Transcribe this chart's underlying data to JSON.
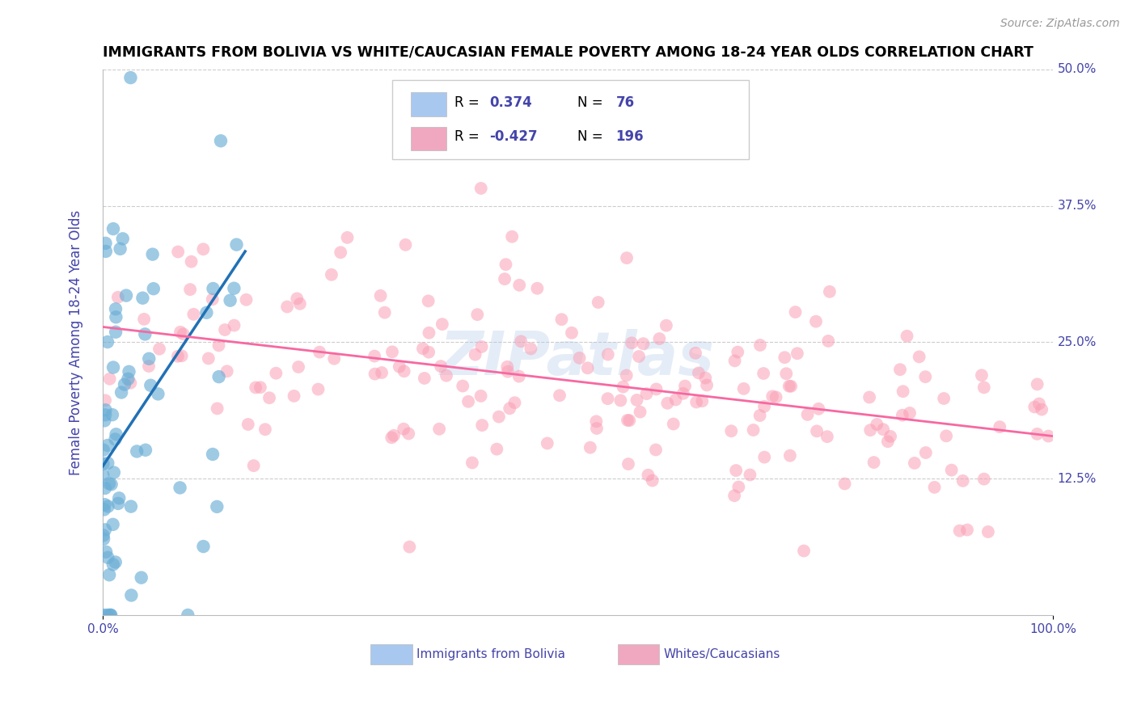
{
  "title": "IMMIGRANTS FROM BOLIVIA VS WHITE/CAUCASIAN FEMALE POVERTY AMONG 18-24 YEAR OLDS CORRELATION CHART",
  "source": "Source: ZipAtlas.com",
  "ylabel": "Female Poverty Among 18-24 Year Olds",
  "xlim": [
    0,
    100
  ],
  "ylim": [
    0,
    50
  ],
  "yticks": [
    0,
    12.5,
    25.0,
    37.5,
    50.0
  ],
  "ytick_labels": [
    "",
    "12.5%",
    "25.0%",
    "37.5%",
    "50.0%"
  ],
  "xtick_labels": [
    "0.0%",
    "100.0%"
  ],
  "legend_entries": [
    {
      "label_r": "R = ",
      "label_rv": "0.374",
      "label_n": "N = ",
      "label_nv": "76",
      "color": "#a8c8f0"
    },
    {
      "label_r": "R = ",
      "label_rv": "-0.427",
      "label_n": "N = ",
      "label_nv": "196",
      "color": "#f0a8c0"
    }
  ],
  "blue_scatter_seed": 42,
  "pink_scatter_seed": 123,
  "blue_R": 0.374,
  "blue_N": 76,
  "pink_R": -0.427,
  "pink_N": 196,
  "blue_color": "#6baed6",
  "pink_color": "#fa9fb5",
  "blue_line_color": "#2171b5",
  "pink_line_color": "#f768a1",
  "watermark": "ZIPatlas",
  "background_color": "#ffffff",
  "grid_color": "#cccccc",
  "axis_label_color": "#4444aa",
  "tick_color": "#4444aa"
}
